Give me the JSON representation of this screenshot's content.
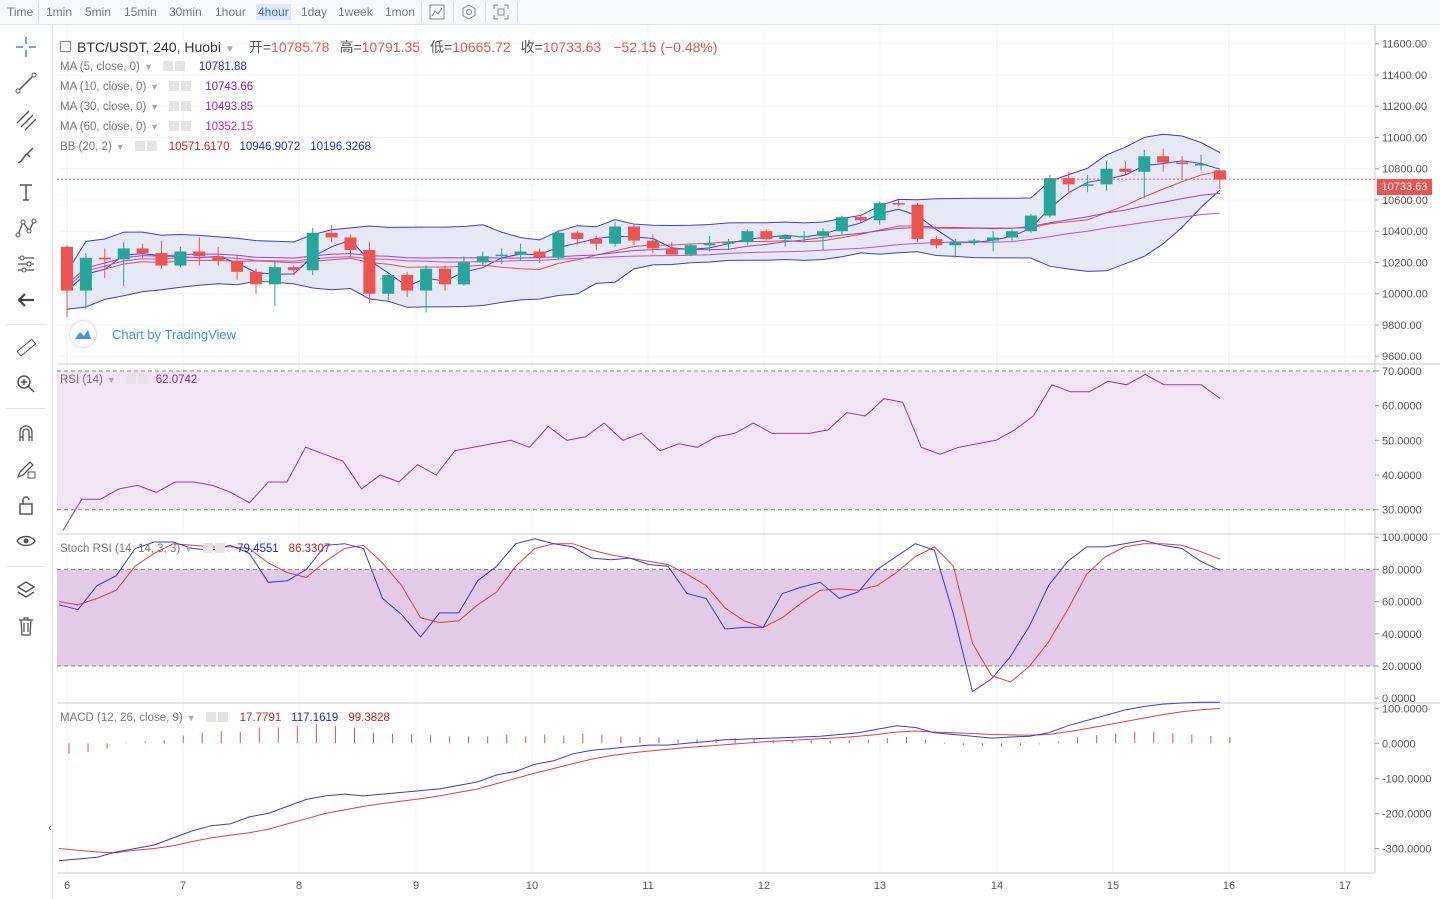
{
  "toolbar": {
    "intervals": [
      "Time",
      "1min",
      "5min",
      "15min",
      "30min",
      "1hour",
      "4hour",
      "1day",
      "1week",
      "1mon"
    ],
    "active_interval": "4hour"
  },
  "sidebar": {
    "icons": [
      "crosshair-icon",
      "trend-line-icon",
      "fib-icon",
      "brush-icon",
      "text-icon",
      "pattern-icon",
      "prediction-icon",
      "back-arrow-icon",
      "ruler-icon",
      "zoom-in-icon",
      "magnet-icon",
      "lock-drawing-icon",
      "lock-icon",
      "eye-icon",
      "layers-icon",
      "trash-icon"
    ]
  },
  "header": {
    "symbol": "BTC/USDT, 240, Huobi",
    "open_label": "开=",
    "open": "10785.78",
    "high_label": "高=",
    "high": "10791.35",
    "low_label": "低=",
    "low": "10665.72",
    "close_label": "收=",
    "close": "10733.63",
    "change": "−52.15 (−0.48%)"
  },
  "indicators": {
    "ma5": {
      "label": "MA (5, close, 0)",
      "value": "10781.88",
      "color": "#1a2bd0"
    },
    "ma10": {
      "label": "MA (10, close, 0)",
      "value": "10743.66",
      "color": "#6a1fd0"
    },
    "ma30": {
      "label": "MA (30, close, 0)",
      "value": "10493.85",
      "color": "#a21fd0"
    },
    "ma60": {
      "label": "MA (60, close, 0)",
      "value": "10352.15",
      "color": "#c81fd0"
    },
    "bb": {
      "label": "BB (20, 2)",
      "v1": "10571.6170",
      "v2": "10946.9072",
      "v3": "10196.3268"
    },
    "rsi": {
      "label": "RSI (14)",
      "value": "62.0742"
    },
    "stoch": {
      "label": "Stoch RSI (14, 14, 3, 3)",
      "k": "79.4551",
      "d": "86.3307"
    },
    "macd": {
      "label": "MACD (12, 26, close, 9)",
      "hist": "17.7791",
      "macd": "117.1619",
      "signal": "99.3828"
    }
  },
  "watermark": {
    "text": "Chart by TradingView"
  },
  "last_price": "10733.63",
  "colors": {
    "up": "#26a69a",
    "down": "#ef5350",
    "bb_fill": "#e3e4f3",
    "rsi_band": "#f1e4f3",
    "stoch_band": "#e3cae6"
  },
  "chart_data": [
    {
      "type": "candlestick",
      "title": "BTC/USDT, 240, Huobi",
      "x_ticks": [
        "6",
        "7",
        "8",
        "9",
        "10",
        "11",
        "12",
        "13",
        "14",
        "15",
        "16",
        "17"
      ],
      "y_ticks": [
        "9600.00",
        "9800.00",
        "10000.00",
        "10200.00",
        "10400.00",
        "10600.00",
        "10800.00",
        "11000.00",
        "11200.00",
        "11400.00",
        "11600.00"
      ],
      "ylim": [
        9550,
        11720
      ],
      "candles": [
        [
          10300,
          10310,
          9850,
          10020
        ],
        [
          10020,
          10260,
          9900,
          10230
        ],
        [
          10230,
          10290,
          10100,
          10220
        ],
        [
          10220,
          10330,
          10050,
          10290
        ],
        [
          10290,
          10320,
          10230,
          10260
        ],
        [
          10260,
          10340,
          10160,
          10180
        ],
        [
          10180,
          10300,
          10170,
          10270
        ],
        [
          10270,
          10360,
          10180,
          10240
        ],
        [
          10240,
          10300,
          10180,
          10210
        ],
        [
          10210,
          10250,
          10090,
          10140
        ],
        [
          10140,
          10160,
          10000,
          10060
        ],
        [
          10060,
          10210,
          9920,
          10170
        ],
        [
          10170,
          10180,
          10120,
          10150
        ],
        [
          10150,
          10420,
          10120,
          10390
        ],
        [
          10390,
          10440,
          10330,
          10360
        ],
        [
          10360,
          10380,
          10240,
          10280
        ],
        [
          10280,
          10330,
          9940,
          10000
        ],
        [
          10000,
          10130,
          9960,
          10120
        ],
        [
          10120,
          10140,
          9980,
          10020
        ],
        [
          10020,
          10180,
          9880,
          10160
        ],
        [
          10160,
          10180,
          10020,
          10060
        ],
        [
          10060,
          10240,
          10050,
          10200
        ],
        [
          10200,
          10270,
          10180,
          10240
        ],
        [
          10240,
          10290,
          10190,
          10250
        ],
        [
          10250,
          10320,
          10210,
          10270
        ],
        [
          10270,
          10290,
          10200,
          10230
        ],
        [
          10230,
          10410,
          10220,
          10390
        ],
        [
          10390,
          10400,
          10310,
          10350
        ],
        [
          10350,
          10370,
          10280,
          10320
        ],
        [
          10320,
          10460,
          10300,
          10430
        ],
        [
          10430,
          10440,
          10310,
          10340
        ],
        [
          10340,
          10380,
          10260,
          10290
        ],
        [
          10290,
          10330,
          10250,
          10250
        ],
        [
          10250,
          10320,
          10240,
          10310
        ],
        [
          10310,
          10370,
          10270,
          10320
        ],
        [
          10320,
          10350,
          10280,
          10330
        ],
        [
          10330,
          10410,
          10310,
          10400
        ],
        [
          10400,
          10410,
          10340,
          10350
        ],
        [
          10350,
          10380,
          10300,
          10370
        ],
        [
          10370,
          10400,
          10330,
          10370
        ],
        [
          10370,
          10420,
          10280,
          10400
        ],
        [
          10400,
          10500,
          10380,
          10490
        ],
        [
          10490,
          10500,
          10450,
          10470
        ],
        [
          10470,
          10590,
          10440,
          10580
        ],
        [
          10580,
          10600,
          10560,
          10570
        ],
        [
          10570,
          10580,
          10330,
          10350
        ],
        [
          10350,
          10370,
          10290,
          10310
        ],
        [
          10310,
          10350,
          10230,
          10330
        ],
        [
          10330,
          10350,
          10310,
          10340
        ],
        [
          10340,
          10400,
          10270,
          10360
        ],
        [
          10360,
          10410,
          10340,
          10400
        ],
        [
          10400,
          10510,
          10390,
          10500
        ],
        [
          10500,
          10760,
          10490,
          10740
        ],
        [
          10740,
          10780,
          10640,
          10700
        ],
        [
          10700,
          10760,
          10650,
          10700
        ],
        [
          10700,
          10850,
          10660,
          10800
        ],
        [
          10800,
          10850,
          10760,
          10780
        ],
        [
          10780,
          10920,
          10610,
          10880
        ],
        [
          10880,
          10930,
          10780,
          10840
        ],
        [
          10840,
          10880,
          10740,
          10830
        ],
        [
          10830,
          10890,
          10790,
          10830
        ],
        [
          10790,
          10790,
          10670,
          10730
        ]
      ],
      "ma5": [
        10730,
        10740,
        10750,
        10735,
        10765,
        10781.88
      ],
      "ma10": [
        10600,
        10650,
        10700,
        10740,
        10743.66
      ],
      "ma30": [
        10480,
        10493.85
      ],
      "ma60": [
        10350,
        10352.15
      ],
      "bb_upper": [
        10950,
        10946.9072
      ],
      "bb_lower": [
        10200,
        10196.3268
      ]
    },
    {
      "type": "line",
      "title": "RSI (14)",
      "y_ticks": [
        "30.0000",
        "40.0000",
        "50.0000",
        "60.0000",
        "70.0000"
      ],
      "ylim": [
        23,
        72
      ],
      "bands": [
        30,
        70
      ],
      "values": [
        24,
        33,
        33,
        36,
        37,
        35,
        38,
        38,
        37,
        35,
        32,
        38,
        38,
        48,
        46,
        44,
        36,
        40,
        38,
        43,
        40,
        47,
        48,
        49,
        50,
        48,
        54,
        50,
        51,
        55,
        50,
        52,
        47,
        49,
        48,
        51,
        52,
        55,
        52,
        52,
        52,
        53,
        58,
        57,
        62,
        61,
        48,
        46,
        48,
        49,
        50,
        53,
        57,
        66,
        64,
        64,
        67,
        66,
        69,
        66,
        66,
        66,
        62.0742
      ]
    },
    {
      "type": "line",
      "title": "Stoch RSI (14, 14, 3, 3)",
      "y_ticks": [
        "0.0000",
        "20.0000",
        "40.0000",
        "60.0000",
        "80.0000",
        "100.0000"
      ],
      "ylim": [
        -3,
        102
      ],
      "bands": [
        20,
        80
      ],
      "series": [
        {
          "name": "K",
          "values": [
            58,
            55,
            70,
            76,
            93,
            97,
            97,
            93,
            92,
            95,
            90,
            72,
            73,
            80,
            95,
            96,
            93,
            62,
            52,
            38,
            53,
            53,
            73,
            82,
            96,
            99,
            96,
            94,
            87,
            86,
            87,
            83,
            82,
            65,
            62,
            43,
            44,
            44,
            65,
            69,
            72,
            62,
            66,
            80,
            88,
            96,
            92,
            52,
            4,
            12,
            26,
            45,
            70,
            85,
            94,
            94,
            96,
            98,
            95,
            93,
            85,
            79.4551
          ]
        },
        {
          "name": "D",
          "values": [
            60,
            58,
            62,
            67,
            82,
            90,
            96,
            95,
            94,
            94,
            93,
            84,
            78,
            75,
            85,
            93,
            95,
            84,
            70,
            50,
            47,
            48,
            58,
            66,
            82,
            93,
            96,
            96,
            92,
            89,
            87,
            85,
            83,
            77,
            70,
            56,
            48,
            44,
            50,
            59,
            67,
            68,
            67,
            70,
            78,
            88,
            94,
            82,
            34,
            14,
            10,
            20,
            35,
            55,
            77,
            88,
            94,
            96,
            96,
            95,
            91,
            86.3307
          ]
        }
      ]
    },
    {
      "type": "line",
      "title": "MACD (12, 26, close, 9)",
      "y_ticks": [
        "-300.0000",
        "-200.0000",
        "-100.0000",
        "0.0000",
        "100.0000"
      ],
      "ylim": [
        -370,
        115
      ],
      "series": [
        {
          "name": "MACD",
          "values": [
            -335,
            -330,
            -325,
            -310,
            -300,
            -290,
            -270,
            -250,
            -235,
            -230,
            -210,
            -200,
            -180,
            -160,
            -150,
            -145,
            -150,
            -145,
            -140,
            -135,
            -130,
            -120,
            -110,
            -90,
            -80,
            -60,
            -50,
            -30,
            -20,
            -15,
            -10,
            -5,
            -5,
            0,
            5,
            10,
            12,
            14,
            16,
            18,
            20,
            25,
            30,
            40,
            50,
            45,
            30,
            25,
            20,
            15,
            18,
            20,
            30,
            50,
            65,
            80,
            95,
            105,
            112,
            115,
            117,
            117.1619
          ]
        },
        {
          "name": "Signal",
          "values": [
            -300,
            -305,
            -310,
            -312,
            -305,
            -300,
            -292,
            -280,
            -270,
            -262,
            -255,
            -245,
            -230,
            -215,
            -200,
            -190,
            -180,
            -172,
            -165,
            -158,
            -150,
            -140,
            -130,
            -115,
            -100,
            -85,
            -72,
            -58,
            -45,
            -35,
            -28,
            -22,
            -17,
            -12,
            -8,
            -4,
            0,
            4,
            7,
            10,
            13,
            16,
            20,
            25,
            32,
            35,
            32,
            30,
            28,
            25,
            24,
            23,
            25,
            33,
            42,
            52,
            62,
            72,
            82,
            90,
            96,
            99.3828
          ]
        },
        {
          "name": "Histogram",
          "values": [
            -30,
            -25,
            -15,
            2,
            5,
            10,
            22,
            30,
            35,
            32,
            45,
            45,
            50,
            55,
            50,
            45,
            30,
            27,
            25,
            23,
            20,
            20,
            20,
            25,
            20,
            25,
            22,
            28,
            25,
            20,
            18,
            17,
            12,
            12,
            13,
            14,
            12,
            10,
            9,
            8,
            7,
            9,
            10,
            15,
            18,
            10,
            -2,
            -5,
            -8,
            -10,
            -6,
            -3,
            5,
            17,
            23,
            28,
            33,
            33,
            30,
            25,
            21,
            17.7791
          ]
        }
      ]
    }
  ]
}
